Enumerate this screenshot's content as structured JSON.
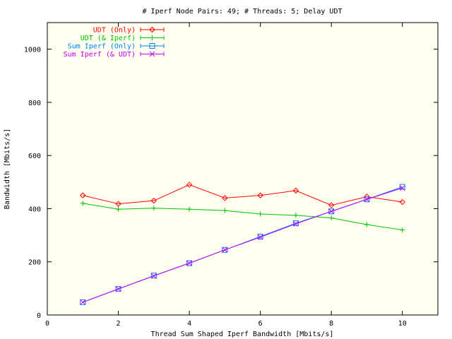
{
  "chart_data": {
    "type": "line",
    "title": "# Iperf Node Pairs: 49; # Threads: 5; Delay UDT",
    "xlabel": "Thread Sum Shaped Iperf Bandwidth [Mbits/s]",
    "ylabel": "Bandwidth [Mbits/s]",
    "xlim": [
      0,
      11
    ],
    "ylim": [
      0,
      1100
    ],
    "xticks": [
      0,
      2,
      4,
      6,
      8,
      10
    ],
    "yticks": [
      0,
      200,
      400,
      600,
      800,
      1000
    ],
    "legend_position": "top-left",
    "x": [
      1,
      2,
      3,
      4,
      5,
      6,
      7,
      8,
      9,
      10
    ],
    "series": [
      {
        "name": "UDT (Only)",
        "color": "#ff0000",
        "marker": "diamond",
        "values": [
          450,
          418,
          430,
          490,
          440,
          450,
          468,
          413,
          445,
          425
        ]
      },
      {
        "name": "UDT (& Iperf)",
        "color": "#00c000",
        "marker": "plus",
        "values": [
          420,
          398,
          402,
          398,
          393,
          380,
          375,
          365,
          340,
          320
        ]
      },
      {
        "name": "Sum Iperf (Only)",
        "color": "#0080ff",
        "marker": "square",
        "values": [
          48,
          98,
          148,
          195,
          245,
          295,
          345,
          390,
          435,
          482
        ]
      },
      {
        "name": "Sum Iperf (& UDT)",
        "color": "#c000ff",
        "marker": "x",
        "values": [
          48,
          98,
          147,
          195,
          245,
          293,
          343,
          390,
          435,
          478
        ]
      }
    ]
  }
}
